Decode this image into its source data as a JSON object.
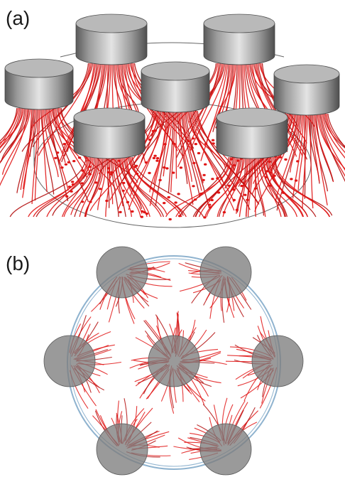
{
  "panels": {
    "a": {
      "label": "(a)"
    },
    "b": {
      "label": "(b)"
    }
  },
  "colors": {
    "streamline": "#e01414",
    "streamline_dark": "#b30d0d",
    "cylinder_top": "#b9b9b9",
    "cylinder_side_light": "#d6d6d6",
    "cylinder_side_dark": "#5e5e5e",
    "outline": "#666666",
    "topview_circle": "#7d7d7d",
    "boundary_blue": "#8fb3cf"
  },
  "scene": {
    "cylinder_count": 7,
    "streamline_color_name": "red",
    "electrode_shape": "cylinder"
  }
}
